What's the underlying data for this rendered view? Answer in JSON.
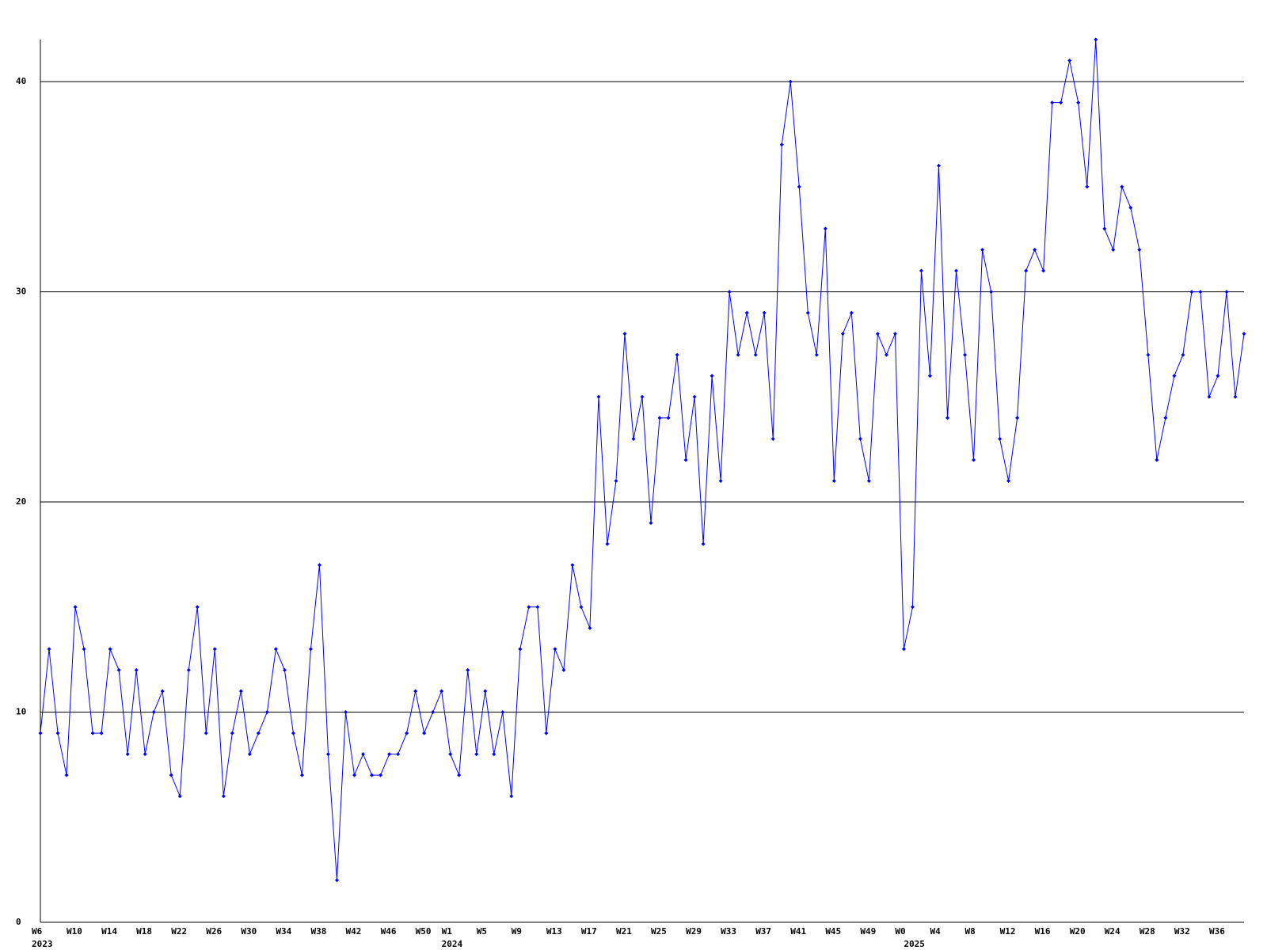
{
  "chart_data": {
    "type": "line",
    "categories": [
      "W6",
      null,
      null,
      null,
      "W10",
      null,
      null,
      null,
      "W14",
      null,
      null,
      null,
      "W18",
      null,
      null,
      null,
      "W22",
      null,
      null,
      null,
      "W26",
      null,
      null,
      null,
      "W30",
      null,
      null,
      null,
      "W34",
      null,
      null,
      null,
      "W38",
      null,
      null,
      null,
      "W42",
      null,
      null,
      null,
      "W46",
      null,
      null,
      null,
      "W50",
      null,
      null,
      "W1",
      null,
      null,
      null,
      "W5",
      null,
      null,
      null,
      "W9",
      null,
      null,
      null,
      "W13",
      null,
      null,
      null,
      "W17",
      null,
      null,
      null,
      "W21",
      null,
      null,
      null,
      "W25",
      null,
      null,
      null,
      "W29",
      null,
      null,
      null,
      "W33",
      null,
      null,
      null,
      "W37",
      null,
      null,
      null,
      "W41",
      null,
      null,
      null,
      "W45",
      null,
      null,
      null,
      "W49",
      null,
      null,
      null,
      "W0",
      null,
      null,
      null,
      "W4",
      null,
      null,
      null,
      "W8",
      null,
      null,
      null,
      "W12",
      null,
      null,
      null,
      "W16",
      null,
      null,
      null,
      "W20",
      null,
      null,
      null,
      "W24",
      null,
      null,
      null,
      "W28",
      null,
      null,
      null,
      "W32",
      null,
      null,
      null,
      "W36",
      null,
      null,
      null
    ],
    "category_years": [
      "2023",
      null,
      null,
      null,
      null,
      null,
      null,
      null,
      null,
      null,
      null,
      null,
      null,
      null,
      null,
      null,
      null,
      null,
      null,
      null,
      null,
      null,
      null,
      null,
      null,
      null,
      null,
      null,
      null,
      null,
      null,
      null,
      null,
      null,
      null,
      null,
      null,
      null,
      null,
      null,
      null,
      null,
      null,
      null,
      null,
      null,
      null,
      "2024",
      null,
      null,
      null,
      null,
      null,
      null,
      null,
      null,
      null,
      null,
      null,
      null,
      null,
      null,
      null,
      null,
      null,
      null,
      null,
      null,
      null,
      null,
      null,
      null,
      null,
      null,
      null,
      null,
      null,
      null,
      null,
      null,
      null,
      null,
      null,
      null,
      null,
      null,
      null,
      null,
      null,
      null,
      null,
      null,
      null,
      null,
      null,
      null,
      null,
      null,
      null,
      null,
      "2025",
      null,
      null,
      null,
      null,
      null,
      null,
      null,
      null,
      null,
      null,
      null,
      null,
      null,
      null,
      null,
      null,
      null,
      null,
      null,
      null,
      null,
      null,
      null,
      null,
      null,
      null,
      null,
      null,
      null,
      null,
      null,
      null,
      null,
      null,
      null,
      null,
      null,
      null,
      null
    ],
    "series": [
      {
        "color": "#0000ff",
        "values": [
          9,
          13,
          9,
          7,
          15,
          13,
          9,
          9,
          13,
          12,
          8,
          12,
          8,
          10,
          11,
          7,
          6,
          12,
          15,
          9,
          13,
          6,
          9,
          11,
          8,
          9,
          10,
          13,
          12,
          9,
          7,
          13,
          17,
          8,
          2,
          10,
          7,
          8,
          7,
          7,
          8,
          8,
          9,
          11,
          9,
          10,
          11,
          8,
          7,
          12,
          8,
          11,
          8,
          10,
          6,
          13,
          15,
          15,
          9,
          13,
          12,
          17,
          15,
          14,
          25,
          18,
          21,
          28,
          23,
          25,
          19,
          24,
          24,
          27,
          22,
          25,
          18,
          26,
          21,
          30,
          27,
          29,
          27,
          29,
          23,
          37,
          40,
          35,
          29,
          27,
          33,
          21,
          28,
          29,
          23,
          21,
          28,
          27,
          28,
          13,
          15,
          31,
          26,
          36,
          24,
          31,
          27,
          22,
          32,
          30,
          23,
          21,
          24,
          31,
          32,
          31,
          39,
          39,
          41,
          39,
          35,
          42,
          33,
          32,
          35,
          34,
          32,
          27,
          22,
          24,
          26,
          27,
          30,
          30,
          25,
          26,
          30,
          25,
          28
        ]
      }
    ],
    "ylim": [
      0,
      42
    ],
    "yticks": [
      0,
      10,
      20,
      30,
      40
    ],
    "grid": true
  }
}
